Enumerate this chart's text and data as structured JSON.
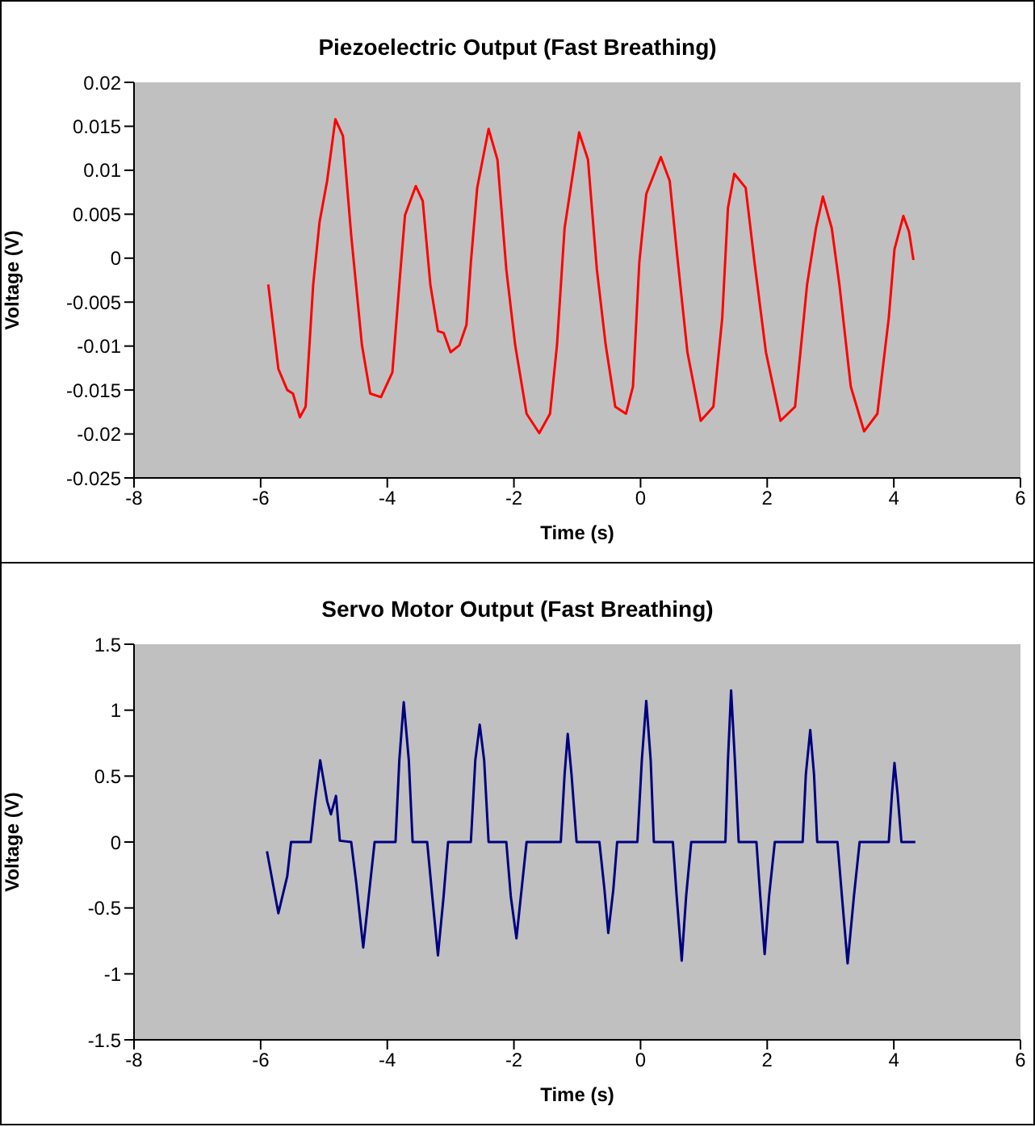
{
  "chart_data": [
    {
      "type": "line",
      "title": "Piezoelectric Output (Fast Breathing)",
      "xlabel": "Time (s)",
      "ylabel": "Voltage (V)",
      "xlim": [
        -8,
        6
      ],
      "xticks": [
        -8,
        -6,
        -4,
        -2,
        0,
        2,
        4,
        6
      ],
      "ylim": [
        -0.025,
        0.02
      ],
      "yticks": [
        -0.025,
        -0.02,
        -0.015,
        -0.01,
        -0.005,
        0,
        0.005,
        0.01,
        0.015,
        0.02
      ],
      "grid": false,
      "marker": "none",
      "line_style": "solid",
      "series": [
        {
          "color": "#ff0000",
          "x": [
            -5.88,
            -5.72,
            -5.58,
            -5.49,
            -5.38,
            -5.29,
            -5.17,
            -5.07,
            -4.95,
            -4.82,
            -4.7,
            -4.57,
            -4.4,
            -4.27,
            -4.1,
            -3.92,
            -3.8,
            -3.72,
            -3.55,
            -3.44,
            -3.32,
            -3.2,
            -3.11,
            -3,
            -2.86,
            -2.75,
            -2.68,
            -2.58,
            -2.4,
            -2.26,
            -2.12,
            -1.98,
            -1.8,
            -1.6,
            -1.43,
            -1.32,
            -1.2,
            -0.97,
            -0.83,
            -0.69,
            -0.55,
            -0.4,
            -0.23,
            -0.12,
            -0.02,
            0.09,
            0.32,
            0.46,
            0.58,
            0.74,
            0.95,
            1.15,
            1.29,
            1.38,
            1.48,
            1.66,
            1.8,
            1.98,
            2.21,
            2.44,
            2.63,
            2.77,
            2.88,
            3.02,
            3.14,
            3.32,
            3.53,
            3.74,
            3.92,
            4.01,
            4.15,
            4.24,
            4.31
          ],
          "values": [
            -0.003,
            -0.0126,
            -0.015,
            -0.0154,
            -0.0181,
            -0.0169,
            -0.003,
            0.0041,
            0.0088,
            0.0158,
            0.0139,
            0.0026,
            -0.0099,
            -0.0154,
            -0.0158,
            -0.013,
            -0.0021,
            0.0049,
            0.0082,
            0.0065,
            -0.003,
            -0.0083,
            -0.0085,
            -0.0107,
            -0.0099,
            -0.0076,
            -0.0005,
            0.008,
            0.0147,
            0.0112,
            -0.0013,
            -0.0099,
            -0.0177,
            -0.0199,
            -0.0177,
            -0.0099,
            0.0034,
            0.0143,
            0.0112,
            -0.0013,
            -0.0099,
            -0.0169,
            -0.0177,
            -0.0146,
            -0.0005,
            0.0073,
            0.0115,
            0.0088,
            0.0002,
            -0.0107,
            -0.0185,
            -0.0169,
            -0.0068,
            0.0057,
            0.0096,
            0.008,
            -0.0005,
            -0.0107,
            -0.0185,
            -0.0169,
            -0.003,
            0.0034,
            0.007,
            0.0034,
            -0.003,
            -0.0146,
            -0.0197,
            -0.0177,
            -0.0068,
            0.001,
            0.0048,
            0.003,
            -0.0002
          ]
        }
      ]
    },
    {
      "type": "line",
      "title": "Servo Motor Output (Fast Breathing)",
      "xlabel": "Time (s)",
      "ylabel": "Voltage (V)",
      "xlim": [
        -8,
        6
      ],
      "xticks": [
        -8,
        -6,
        -4,
        -2,
        0,
        2,
        4,
        6
      ],
      "ylim": [
        -1.5,
        1.5
      ],
      "yticks": [
        -1.5,
        -1,
        -0.5,
        0,
        0.5,
        1,
        1.5
      ],
      "grid": false,
      "marker": "none",
      "line_style": "solid",
      "series": [
        {
          "color": "#000080",
          "x": [
            -5.9,
            -5.72,
            -5.58,
            -5.52,
            -5.21,
            -5.14,
            -5.06,
            -4.95,
            -4.89,
            -4.81,
            -4.75,
            -4.57,
            -4.49,
            -4.38,
            -4.27,
            -4.2,
            -3.87,
            -3.81,
            -3.74,
            -3.66,
            -3.6,
            -3.37,
            -3.29,
            -3.2,
            -3.11,
            -3.04,
            -2.68,
            -2.61,
            -2.54,
            -2.47,
            -2.4,
            -2.12,
            -2.05,
            -1.96,
            -1.89,
            -1.8,
            -1.26,
            -1.2,
            -1.15,
            -1.09,
            -1.01,
            -0.65,
            -0.57,
            -0.51,
            -0.43,
            -0.37,
            -0.05,
            0.02,
            0.09,
            0.16,
            0.21,
            0.51,
            0.57,
            0.65,
            0.72,
            0.8,
            1.34,
            1.38,
            1.43,
            1.49,
            1.55,
            1.83,
            1.89,
            1.96,
            2.03,
            2.12,
            2.56,
            2.61,
            2.68,
            2.74,
            2.79,
            3.11,
            3.18,
            3.27,
            3.37,
            3.46,
            3.92,
            3.97,
            4.01,
            4.06,
            4.12,
            4.34
          ],
          "values": [
            -0.07,
            -0.54,
            -0.26,
            0,
            0,
            0.31,
            0.62,
            0.31,
            0.21,
            0.35,
            0.01,
            0,
            -0.31,
            -0.8,
            -0.31,
            0,
            0,
            0.62,
            1.06,
            0.62,
            0,
            0,
            -0.41,
            -0.86,
            -0.41,
            0,
            0,
            0.62,
            0.89,
            0.62,
            0,
            0,
            -0.41,
            -0.73,
            -0.41,
            0,
            0,
            0.51,
            0.82,
            0.51,
            0,
            0,
            -0.36,
            -0.69,
            -0.36,
            0,
            0,
            0.62,
            1.07,
            0.62,
            0,
            0,
            -0.41,
            -0.9,
            -0.41,
            0,
            0,
            0.62,
            1.15,
            0.62,
            0,
            0,
            -0.41,
            -0.85,
            -0.41,
            0,
            0,
            0.51,
            0.85,
            0.51,
            0,
            0,
            -0.41,
            -0.92,
            -0.41,
            0,
            0,
            0.36,
            0.6,
            0.36,
            0,
            0
          ]
        }
      ]
    }
  ]
}
